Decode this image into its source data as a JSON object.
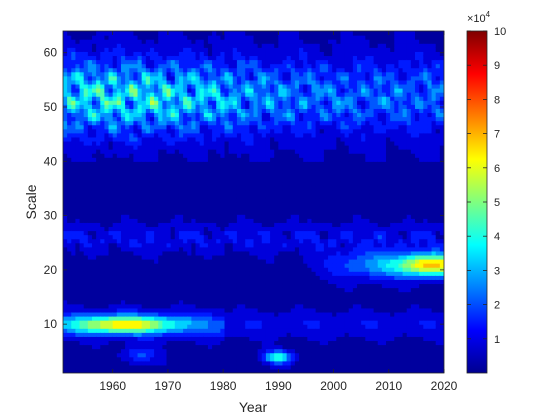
{
  "chart_data": {
    "type": "heatmap",
    "subtype": "filled-contour",
    "title": "",
    "xlabel": "Year",
    "ylabel": "Scale",
    "xlim": [
      1951,
      2020
    ],
    "ylim": [
      1,
      64
    ],
    "xticks": [
      1960,
      1970,
      1980,
      1990,
      2000,
      2010,
      2020
    ],
    "yticks": [
      10,
      20,
      30,
      40,
      50,
      60
    ],
    "colorbar": {
      "colormap": "jet",
      "clim": [
        0,
        100000
      ],
      "exponent_label": "×10",
      "exponent_power": "4",
      "ticks": [
        1,
        2,
        3,
        4,
        5,
        6,
        7,
        8,
        9,
        10
      ],
      "tick_labels": [
        "1",
        "2",
        "3",
        "4",
        "5",
        "6",
        "7",
        "8",
        "9",
        "10"
      ]
    },
    "features": [
      {
        "year_range": [
          1951,
          2020
        ],
        "scale_range": [
          40,
          62
        ],
        "level": 40000,
        "description_level": "high power band, peaks near 60000-70000 around 1951-1975"
      },
      {
        "year_range": [
          1951,
          1975
        ],
        "scale_range": [
          8,
          12
        ],
        "level": 50000,
        "peak_year": 1962,
        "peak_scale": 10
      },
      {
        "year_range": [
          2000,
          2020
        ],
        "scale_range": [
          18,
          24
        ],
        "level": 60000,
        "peak_year": 2017,
        "peak_scale": 21
      },
      {
        "year_range": [
          1985,
          1995
        ],
        "scale_range": [
          3,
          6
        ],
        "level": 40000,
        "peak_year": 1990,
        "peak_scale": 4
      },
      {
        "year_range": [
          1951,
          2020
        ],
        "scale_range": [
          25,
          40
        ],
        "level": 10000,
        "description_level": "low power background"
      }
    ],
    "grid": false,
    "legend": "none"
  }
}
